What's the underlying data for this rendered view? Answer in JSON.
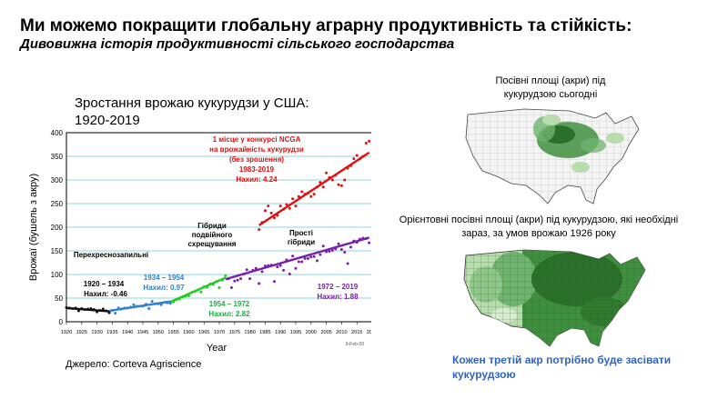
{
  "slide": {
    "title": "Ми можемо покращити глобальну аграрну продуктивність та стійкість:",
    "subtitle": "Дивовижна історія продуктивності сільського господарства",
    "chart_heading_line1": "Зростання врожаю кукурудзи у США:",
    "chart_heading_line2": "1920-2019",
    "source": "Джерело: Corteva Agriscience",
    "map1_caption_line1": "Посівні площі (акри) під",
    "map1_caption_line2": "кукурудзою сьогодні",
    "map2_caption_line1": "Орієнтовні посівні площі (акри) під кукурудзою, які необхідні",
    "map2_caption_line2": "зараз, за умов врожаю 1926 року",
    "note": "Кожен третій акр потрібно буде засівати кукурудзою"
  },
  "colors": {
    "era1": "#111111",
    "era2": "#2f7fd0",
    "era3": "#22cc22",
    "era4": "#7a1fa8",
    "contest": "#e01010",
    "grid": "#6ac9d9",
    "map_green_dark": "#3f8f3f",
    "map_green_light": "#b8dcae",
    "note_blue": "#2f63c6"
  },
  "chart_data": {
    "type": "scatter",
    "xlabel": "Year",
    "ylabel": "Врожаї (бушель з акру)",
    "xlim": [
      1920,
      2020
    ],
    "ylim": [
      0,
      400
    ],
    "xticks": [
      1920,
      1925,
      1930,
      1935,
      1940,
      1945,
      1950,
      1955,
      1960,
      1965,
      1970,
      1975,
      1980,
      1985,
      1990,
      1995,
      2000,
      2005,
      2010,
      2015,
      2020
    ],
    "yticks": [
      0,
      50,
      100,
      150,
      200,
      250,
      300,
      350,
      400
    ],
    "date_note": "9-Feb-20",
    "series": [
      {
        "key": "era1",
        "years": [
          1920,
          1921,
          1922,
          1923,
          1924,
          1925,
          1926,
          1927,
          1928,
          1929,
          1930,
          1931,
          1932,
          1933,
          1934
        ],
        "values": [
          30,
          29,
          28,
          29,
          23,
          28,
          26,
          27,
          28,
          26,
          21,
          24,
          27,
          23,
          19
        ]
      },
      {
        "key": "era2",
        "years": [
          1935,
          1936,
          1937,
          1938,
          1939,
          1940,
          1941,
          1942,
          1943,
          1944,
          1945,
          1946,
          1947,
          1948,
          1949,
          1950,
          1951,
          1952,
          1953,
          1954
        ],
        "values": [
          24,
          18,
          29,
          27,
          29,
          29,
          31,
          36,
          33,
          33,
          33,
          37,
          28,
          43,
          38,
          38,
          36,
          41,
          40,
          39
        ]
      },
      {
        "key": "era3",
        "years": [
          1955,
          1956,
          1957,
          1958,
          1959,
          1960,
          1961,
          1962,
          1963,
          1964,
          1965,
          1966,
          1967,
          1968,
          1969,
          1970,
          1971,
          1972
        ],
        "values": [
          42,
          47,
          48,
          52,
          54,
          55,
          62,
          64,
          67,
          63,
          74,
          73,
          80,
          79,
          85,
          72,
          88,
          97
        ]
      },
      {
        "key": "era4",
        "years": [
          1973,
          1974,
          1975,
          1976,
          1977,
          1978,
          1979,
          1980,
          1981,
          1982,
          1983,
          1984,
          1985,
          1986,
          1987,
          1988,
          1989,
          1990,
          1991,
          1992,
          1993,
          1994,
          1995,
          1996,
          1997,
          1998,
          1999,
          2000,
          2001,
          2002,
          2003,
          2004,
          2005,
          2006,
          2007,
          2008,
          2009,
          2010,
          2011,
          2012,
          2013,
          2014,
          2015,
          2016,
          2017,
          2018,
          2019
        ],
        "values": [
          91,
          72,
          86,
          88,
          91,
          101,
          110,
          91,
          109,
          113,
          81,
          106,
          118,
          119,
          120,
          85,
          116,
          119,
          109,
          131,
          101,
          139,
          113,
          127,
          127,
          134,
          134,
          137,
          138,
          129,
          142,
          160,
          148,
          149,
          151,
          154,
          165,
          153,
          147,
          123,
          158,
          171,
          168,
          175,
          177,
          176,
          167
        ]
      },
      {
        "key": "contest",
        "years": [
          1983,
          1984,
          1985,
          1986,
          1987,
          1988,
          1989,
          1990,
          1991,
          1992,
          1993,
          1994,
          1995,
          1996,
          1997,
          1998,
          1999,
          2000,
          2001,
          2002,
          2003,
          2004,
          2005,
          2006,
          2007,
          2008,
          2009,
          2010,
          2011,
          2012,
          2013,
          2014,
          2015,
          2016,
          2017,
          2018,
          2019
        ],
        "values": [
          195,
          210,
          235,
          245,
          230,
          220,
          225,
          245,
          238,
          248,
          240,
          260,
          245,
          265,
          275,
          270,
          272,
          265,
          270,
          285,
          295,
          285,
          315,
          305,
          300,
          310,
          290,
          288,
          300,
          325,
          330,
          345,
          352,
          345,
          350,
          378,
          382
        ]
      }
    ],
    "trendlines": [
      {
        "key": "era1",
        "x": [
          1920,
          1934
        ],
        "y": [
          29,
          22
        ]
      },
      {
        "key": "era2",
        "x": [
          1934,
          1954
        ],
        "y": [
          23,
          43
        ]
      },
      {
        "key": "era3",
        "x": [
          1954,
          1972
        ],
        "y": [
          42,
          93
        ]
      },
      {
        "key": "era4",
        "x": [
          1972,
          2019
        ],
        "y": [
          90,
          178
        ]
      },
      {
        "key": "contest",
        "x": [
          1983,
          2019
        ],
        "y": [
          204,
          358
        ]
      }
    ],
    "annotations": {
      "contest_line1": "1 місце у конкурсі NCGA",
      "contest_line2": "на врожайність кукурудзи",
      "contest_line3": "(без зрошення)",
      "contest_line4": "1983-2019",
      "contest_slope": "Нахил: 4.24",
      "openpol": "Перехреснозапильні",
      "dbl_line1": "Гібриди",
      "dbl_line2": "подвійного",
      "dbl_line3": "схрещування",
      "single_line1": "Прості",
      "single_line2": "гібриди",
      "era1_range": "1920 – 1934",
      "era1_slope": "Нахил: -0.46",
      "era2_range": "1934 – 1954",
      "era2_slope": "Нахил: 0.97",
      "era3_range": "1954 – 1972",
      "era3_slope": "Нахил: 2.82",
      "era4_range": "1972 – 2019",
      "era4_slope": "Нахил: 1.88"
    }
  }
}
